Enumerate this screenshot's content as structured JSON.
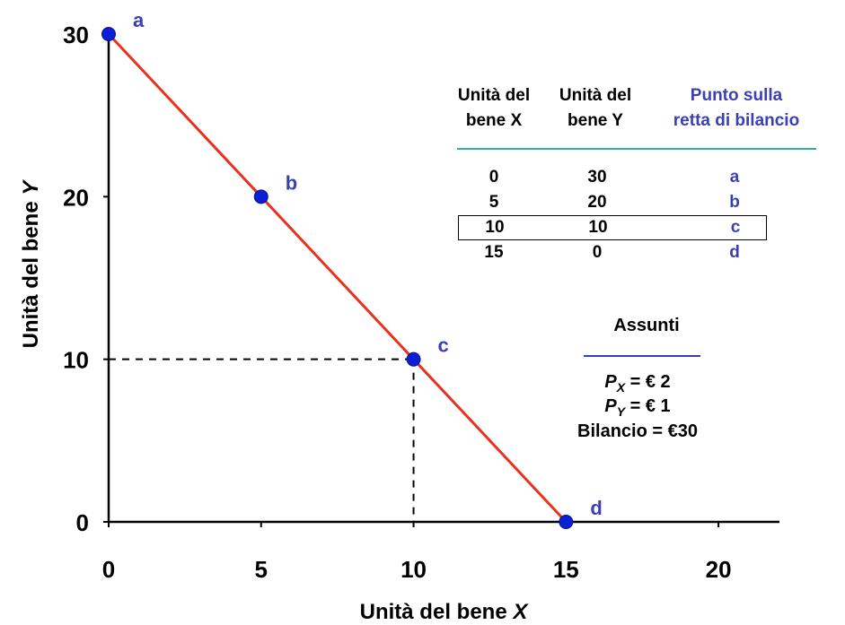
{
  "chart_data": {
    "type": "line",
    "xlabel": "Unità del bene X",
    "ylabel": "Unità del bene Y",
    "xlim": [
      0,
      22
    ],
    "ylim": [
      0,
      30
    ],
    "x_ticks": [
      "0",
      "5",
      "10",
      "15",
      "20"
    ],
    "y_ticks": [
      "0",
      "10",
      "20",
      "30"
    ],
    "series": [
      {
        "x": [
          0,
          5,
          10,
          15
        ],
        "y": [
          30,
          20,
          10,
          0
        ],
        "color": "#e8321e"
      }
    ],
    "points": [
      {
        "label": "a",
        "x": 0,
        "y": 30
      },
      {
        "label": "b",
        "x": 5,
        "y": 20
      },
      {
        "label": "c",
        "x": 10,
        "y": 10
      },
      {
        "label": "d",
        "x": 15,
        "y": 0
      }
    ],
    "highlight": {
      "x": 10,
      "y": 10
    },
    "grid": false
  },
  "table": {
    "headers": [
      "Unità del bene X",
      "Unità del bene Y",
      "Punto sulla retta di bilancio"
    ],
    "header_lines": [
      [
        "Unità del",
        "bene X"
      ],
      [
        "Unità del",
        "bene Y"
      ],
      [
        "Punto sulla",
        "retta di bilancio"
      ]
    ],
    "rows": [
      {
        "x": "0",
        "y": "30",
        "point": "a"
      },
      {
        "x": "5",
        "y": "20",
        "point": "b"
      },
      {
        "x": "10",
        "y": "10",
        "point": "c"
      },
      {
        "x": "15",
        "y": "0",
        "point": "d"
      }
    ],
    "highlighted_row": 2
  },
  "assumptions": {
    "title": "Assunti",
    "px_value": "= € 2",
    "py_value": "= € 1",
    "budget": "Bilancio = €30"
  },
  "colors": {
    "line": "#e8321e",
    "points": "#0a1fd6",
    "labels": "#3b3fb5",
    "teal_rule": "#2fb0a4"
  }
}
